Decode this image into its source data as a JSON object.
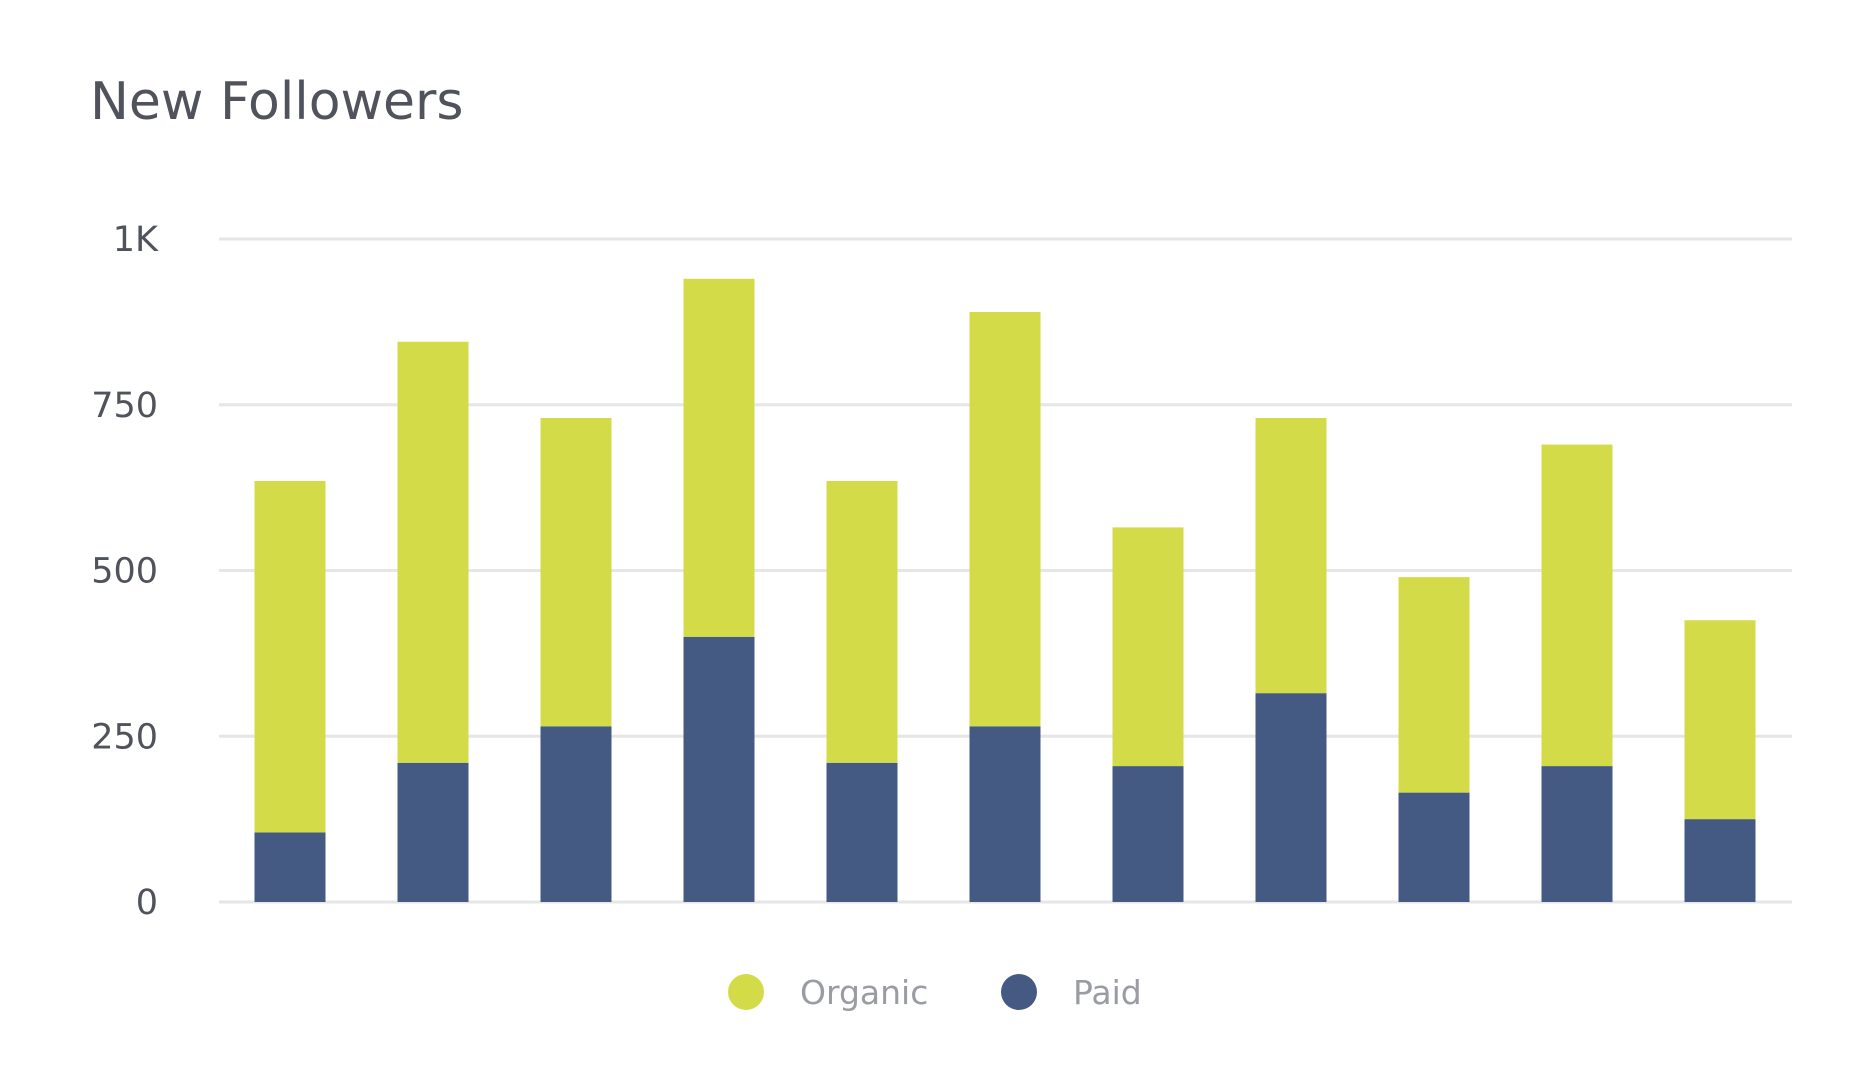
{
  "chart_data": {
    "type": "bar",
    "stacked": true,
    "title": "New Followers",
    "xlabel": "",
    "ylabel": "",
    "ylim": [
      0,
      1000
    ],
    "yticks": [
      0,
      250,
      500,
      750,
      1000
    ],
    "ytick_labels": [
      "0",
      "250",
      "500",
      "750",
      "1K"
    ],
    "grid": true,
    "legend": "bottom",
    "categories": [
      "",
      "",
      "",
      "",
      "",
      "",
      "",
      "",
      "",
      "",
      ""
    ],
    "series": [
      {
        "name": "Paid",
        "color": "#455a82",
        "values": [
          105,
          210,
          265,
          400,
          210,
          265,
          205,
          315,
          165,
          205,
          125
        ]
      },
      {
        "name": "Organic",
        "color": "#d3db48",
        "values": [
          530,
          635,
          465,
          540,
          425,
          625,
          360,
          415,
          325,
          485,
          300
        ]
      }
    ],
    "legend_order": [
      "Organic",
      "Paid"
    ]
  }
}
